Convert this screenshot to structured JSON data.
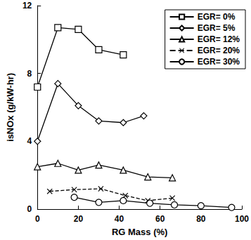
{
  "chart_data": {
    "type": "line",
    "x_label": "RG Mass (%)",
    "y_label": "isNOx (g/kW-hr)",
    "xlim": [
      0,
      100
    ],
    "xticks": [
      0,
      20,
      40,
      60,
      80,
      100
    ],
    "ylim": [
      0,
      12
    ],
    "yticks": [
      0,
      4,
      8,
      12
    ],
    "grid": false,
    "legend": "upper right",
    "series": [
      {
        "name": "EGR= 0%",
        "color": "#000000",
        "marker": "square",
        "line_style": "solid",
        "x": [
          0,
          10,
          20,
          30,
          42
        ],
        "values": [
          7.2,
          10.7,
          10.6,
          9.4,
          9.1
        ]
      },
      {
        "name": "EGR= 5%",
        "color": "#000000",
        "marker": "diamond",
        "line_style": "solid",
        "x": [
          0,
          10,
          20,
          30,
          42,
          52
        ],
        "values": [
          4.0,
          7.4,
          6.1,
          5.2,
          5.1,
          5.5
        ]
      },
      {
        "name": "EGR= 12%",
        "color": "#000000",
        "marker": "triangle",
        "line_style": "solid",
        "x": [
          0,
          10,
          20,
          30,
          42,
          54,
          66
        ],
        "values": [
          2.5,
          2.7,
          2.3,
          2.6,
          2.3,
          1.9,
          1.85
        ]
      },
      {
        "name": "EGR= 20%",
        "color": "#000000",
        "marker": "x",
        "line_style": "dashed",
        "x": [
          6,
          18,
          31,
          43,
          54,
          66
        ],
        "values": [
          1.05,
          1.15,
          1.2,
          0.8,
          0.5,
          0.65
        ]
      },
      {
        "name": "EGR= 30%",
        "color": "#000000",
        "marker": "circle",
        "line_style": "solid",
        "x": [
          18,
          30,
          42,
          55,
          67,
          80,
          95
        ],
        "values": [
          0.7,
          0.4,
          0.5,
          0.35,
          0.25,
          0.2,
          0.1
        ]
      }
    ]
  }
}
